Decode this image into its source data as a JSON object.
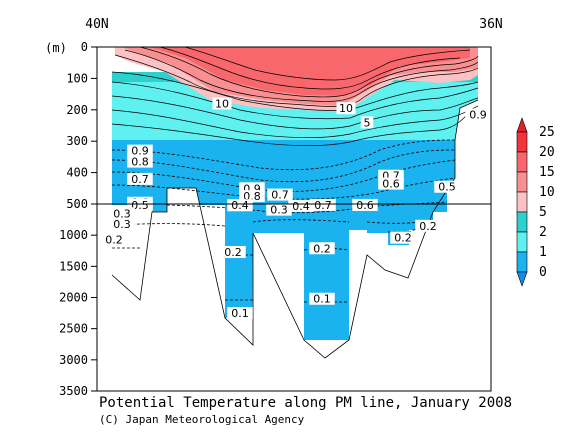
{
  "chart_data": {
    "type": "contour-section",
    "title": "Potential Temperature along PM line, January 2008",
    "credit": "(C) Japan Meteorological Agency",
    "x_left_label": "40N",
    "x_right_label": "36N",
    "ylabel": "(m)",
    "y_upper_ticks": [
      0,
      100,
      200,
      300,
      400,
      500
    ],
    "y_lower_ticks": [
      500,
      1000,
      1500,
      2000,
      2500,
      3000,
      3500
    ],
    "y_break": 500,
    "colorbar": {
      "labels": [
        "25",
        "20",
        "15",
        "10",
        "5",
        "2",
        "1",
        "0"
      ],
      "colors": [
        "#f4333c",
        "#f8676c",
        "#f98f91",
        "#fbc1c3",
        "#2ed0cf",
        "#5ff0f0",
        "#1ab3f0"
      ],
      "extend_top_color": "#e5202a",
      "extend_bottom_color": "#0f8fe6"
    },
    "contour_labels": [
      {
        "text": "10",
        "depth": 180
      },
      {
        "text": "10",
        "depth": 195
      },
      {
        "text": "5",
        "depth": 240
      },
      {
        "text": "0.9",
        "depth": 215
      },
      {
        "text": "0.9",
        "depth": 330
      },
      {
        "text": "0.8",
        "depth": 365
      },
      {
        "text": "0.7",
        "depth": 420
      },
      {
        "text": "0.9",
        "depth": 450
      },
      {
        "text": "0.8",
        "depth": 475
      },
      {
        "text": "0.7",
        "depth": 470
      },
      {
        "text": "0.7",
        "depth": 410
      },
      {
        "text": "0.6",
        "depth": 435
      },
      {
        "text": "0.5",
        "depth": 445
      },
      {
        "text": "0.6",
        "depth": 496
      },
      {
        "text": "0.5",
        "depth": 515
      },
      {
        "text": "0.7",
        "depth": 515
      },
      {
        "text": "0.6",
        "depth": 515
      },
      {
        "text": "0.4",
        "depth": 530
      },
      {
        "text": "0.4",
        "depth": 520
      },
      {
        "text": "0.3",
        "depth": 650
      },
      {
        "text": "0.3",
        "depth": 820
      },
      {
        "text": "0.3",
        "depth": 590
      },
      {
        "text": "0.2",
        "depth": 1070
      },
      {
        "text": "0.2",
        "depth": 1270
      },
      {
        "text": "0.2",
        "depth": 1210
      },
      {
        "text": "0.2",
        "depth": 1040
      },
      {
        "text": "0.2",
        "depth": 850
      },
      {
        "text": "0.1",
        "depth": 2250
      },
      {
        "text": "0.1",
        "depth": 2020
      }
    ]
  }
}
